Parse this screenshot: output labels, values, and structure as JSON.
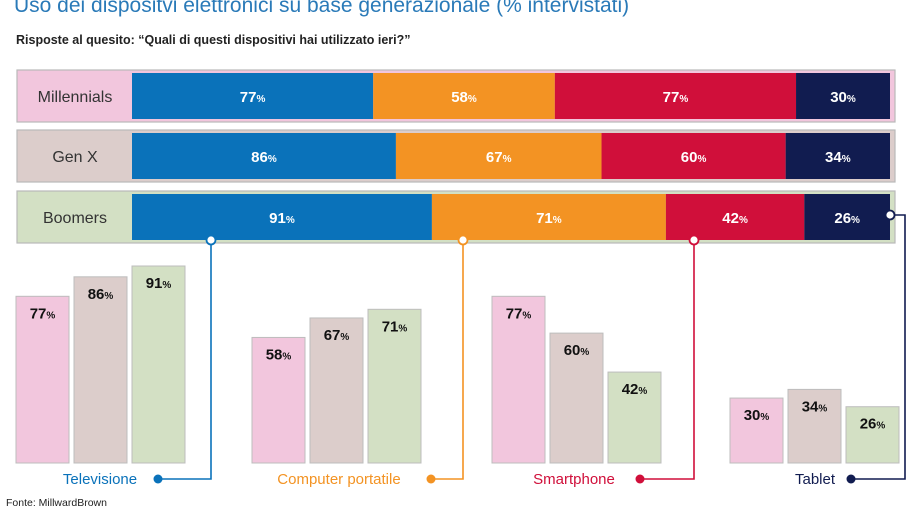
{
  "title": "Uso dei dispositvi elettronici su base generazionale (% intervistati)",
  "subtitle": "Risposte al quesito: “Quali di questi dispositivi hai utilizzato ieri?”",
  "source": "Fonte: MillwardBrown",
  "colors": {
    "millennials_bg": "#f2c6dd",
    "genx_bg": "#dccdcb",
    "boomers_bg": "#d3e0c4",
    "television": "#0a72ba",
    "computer": "#f39323",
    "smartphone": "#d00f3a",
    "tablet": "#111c50"
  },
  "chart_data": [
    {
      "type": "bar",
      "orientation": "horizontal",
      "stacked": true,
      "categories": [
        "Millennials",
        "Gen X",
        "Boomers"
      ],
      "series": [
        {
          "name": "Televisione",
          "values": [
            77,
            86,
            91
          ]
        },
        {
          "name": "Computer portatile",
          "values": [
            58,
            67,
            71
          ]
        },
        {
          "name": "Smartphone",
          "values": [
            77,
            60,
            42
          ]
        },
        {
          "name": "Tablet",
          "values": [
            30,
            34,
            26
          ]
        }
      ],
      "value_suffix": "%"
    },
    {
      "type": "bar",
      "groups": [
        "Televisione",
        "Computer portatile",
        "Smartphone",
        "Tablet"
      ],
      "series": [
        {
          "name": "Millennials",
          "values": [
            77,
            58,
            77,
            30
          ]
        },
        {
          "name": "Gen X",
          "values": [
            86,
            67,
            60,
            34
          ]
        },
        {
          "name": "Boomers",
          "values": [
            91,
            71,
            42,
            26
          ]
        }
      ],
      "value_suffix": "%"
    }
  ]
}
